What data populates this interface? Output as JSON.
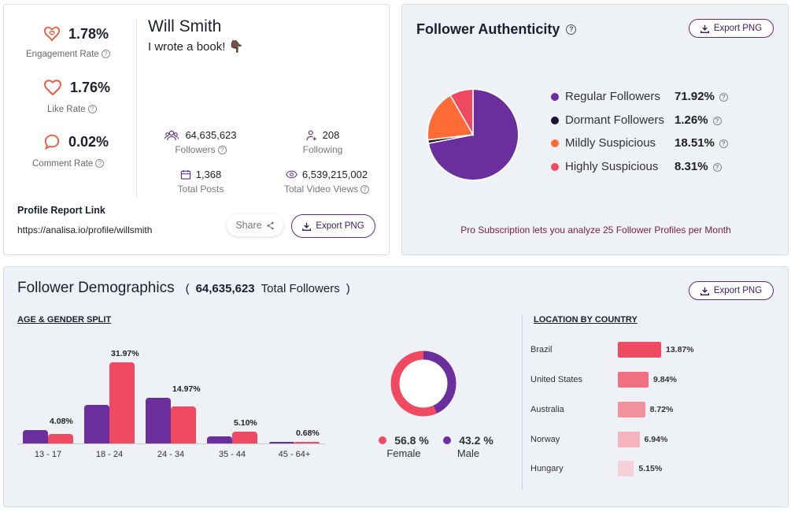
{
  "profile": {
    "metrics": [
      {
        "value": "1.78%",
        "label": "Engagement Rate",
        "icon": "heart-chat-icon"
      },
      {
        "value": "1.76%",
        "label": "Like Rate",
        "icon": "heart-icon"
      },
      {
        "value": "0.02%",
        "label": "Comment Rate",
        "icon": "comment-icon"
      }
    ],
    "name": "Will Smith",
    "bio": "I wrote a book! 👇🏿",
    "stats": [
      {
        "value": "64,635,623",
        "label": "Followers",
        "icon": "users-icon"
      },
      {
        "value": "208",
        "label": "Following",
        "icon": "user-follow-icon"
      },
      {
        "value": "1,368",
        "label": "Total Posts",
        "icon": "posts-icon"
      },
      {
        "value": "6,539,215,002",
        "label": "Total Video Views",
        "icon": "eye-icon"
      }
    ],
    "report_link_title": "Profile Report Link",
    "report_link": "https://analisa.io/profile/willsmith",
    "share_label": "Share",
    "export_label": "Export PNG"
  },
  "authenticity": {
    "title": "Follower Authenticity",
    "export_label": "Export PNG",
    "items": [
      {
        "label": "Regular Followers",
        "value": "71.92%",
        "pct": 71.92,
        "color": "#6a2f9c"
      },
      {
        "label": "Dormant Followers",
        "value": "1.26%",
        "pct": 1.26,
        "color": "#1c1430"
      },
      {
        "label": "Mildly Suspicious",
        "value": "18.51%",
        "pct": 18.51,
        "color": "#ff6b35"
      },
      {
        "label": "Highly Suspicious",
        "value": "8.31%",
        "pct": 8.31,
        "color": "#f04a62"
      }
    ],
    "note": "Pro Subscription lets you analyze 25 Follower Profiles per Month"
  },
  "demographics": {
    "title": "Follower Demographics",
    "total_open": "(",
    "total_value": "64,635,623",
    "total_label": "Total Followers",
    "total_close": ")",
    "export_label": "Export PNG",
    "age_title": "AGE & GENDER SPLIT",
    "location_title": "LOCATION BY COUNTRY",
    "female_label": "Female",
    "male_label": "Male",
    "female_value": "56.8 %",
    "male_value": "43.2 %",
    "female_pct": 56.8,
    "male_pct": 43.2,
    "colors": {
      "male": "#6a2f9c",
      "female": "#f04a62"
    }
  },
  "chart_data": [
    {
      "type": "bar",
      "categories": [
        "13 - 17",
        "18 - 24",
        "24 - 34",
        "35 - 44",
        "45 - 64+"
      ],
      "series": [
        {
          "name": "Male",
          "values": [
            1.7,
            5.0,
            5.9,
            0.9,
            0.15
          ]
        },
        {
          "name": "Female",
          "values": [
            1.2,
            10.5,
            4.8,
            1.55,
            0.25
          ]
        }
      ],
      "labels": [
        "4.08%",
        "31.97%",
        "14.97%",
        "5.10%",
        "0.68%"
      ],
      "ylim": [
        0,
        11
      ]
    },
    {
      "type": "bar",
      "categories": [
        "Brazil",
        "United States",
        "Australia",
        "Norway",
        "Hungary"
      ],
      "values": [
        13.87,
        9.84,
        8.72,
        6.94,
        5.15
      ],
      "labels": [
        "13.87%",
        "9.84%",
        "8.72%",
        "6.94%",
        "5.15%"
      ],
      "colors": [
        "#ee4a62",
        "#f07082",
        "#f3909e",
        "#f5b3bd",
        "#f7d1d7"
      ]
    }
  ]
}
